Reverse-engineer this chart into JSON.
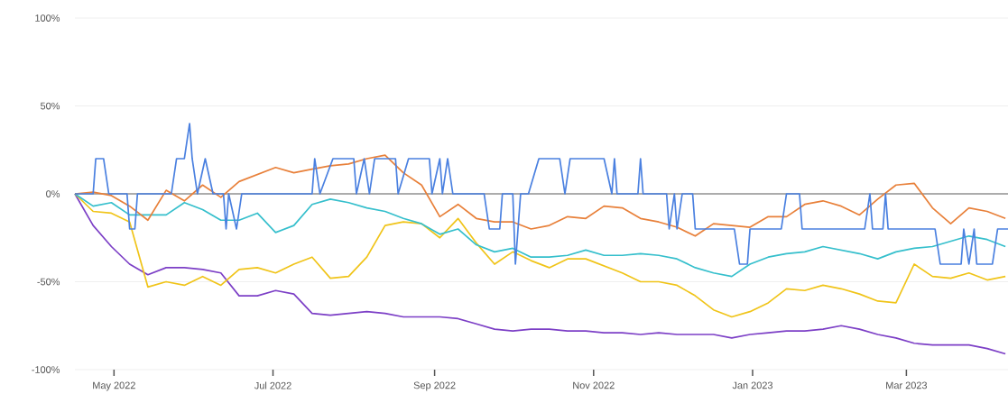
{
  "chart_data": {
    "type": "line",
    "x": [
      "2022-04-16",
      "2022-04-23",
      "2022-04-30",
      "2022-05-07",
      "2022-05-14",
      "2022-05-21",
      "2022-05-28",
      "2022-06-04",
      "2022-06-11",
      "2022-06-18",
      "2022-06-25",
      "2022-07-02",
      "2022-07-09",
      "2022-07-16",
      "2022-07-23",
      "2022-07-30",
      "2022-08-06",
      "2022-08-13",
      "2022-08-20",
      "2022-08-27",
      "2022-09-03",
      "2022-09-10",
      "2022-09-17",
      "2022-09-24",
      "2022-10-01",
      "2022-10-08",
      "2022-10-15",
      "2022-10-22",
      "2022-10-29",
      "2022-11-05",
      "2022-11-12",
      "2022-11-19",
      "2022-11-26",
      "2022-12-03",
      "2022-12-10",
      "2022-12-17",
      "2022-12-24",
      "2022-12-31",
      "2023-01-07",
      "2023-01-14",
      "2023-01-21",
      "2023-01-28",
      "2023-02-04",
      "2023-02-11",
      "2023-02-18",
      "2023-02-25",
      "2023-03-04",
      "2023-03-11",
      "2023-03-18",
      "2023-03-25",
      "2023-04-01",
      "2023-04-08"
    ],
    "series": [
      {
        "color": "#7c3fc6",
        "values": [
          0,
          -18,
          -30,
          -40,
          -46,
          -42,
          -42,
          -43,
          -45,
          -58,
          -58,
          -55,
          -57,
          -68,
          -69,
          -68,
          -67,
          -68,
          -70,
          -70,
          -70,
          -71,
          -74,
          -77,
          -78,
          -77,
          -77,
          -78,
          -78,
          -79,
          -79,
          -80,
          -79,
          -80,
          -80,
          -80,
          -82,
          -80,
          -79,
          -78,
          -78,
          -77,
          -75,
          -77,
          -80,
          -82,
          -85,
          -86,
          -86,
          -86,
          -88,
          -91
        ]
      },
      {
        "color": "#f0c419",
        "values": [
          0,
          -10,
          -11,
          -16,
          -53,
          -50,
          -52,
          -47,
          -52,
          -43,
          -42,
          -45,
          -40,
          -36,
          -48,
          -47,
          -36,
          -18,
          -16,
          -17,
          -25,
          -14,
          -28,
          -40,
          -33,
          -38,
          -42,
          -37,
          -37,
          -41,
          -45,
          -50,
          -50,
          -52,
          -58,
          -66,
          -70,
          -67,
          -62,
          -54,
          -55,
          -52,
          -54,
          -57,
          -61,
          -62,
          -40,
          -47,
          -48,
          -45,
          -49,
          -47
        ]
      },
      {
        "color": "#35bfcc",
        "values": [
          0,
          -7,
          -5,
          -12,
          -12,
          -12,
          -5,
          -9,
          -15,
          -15,
          -11,
          -22,
          -18,
          -6,
          -3,
          -5,
          -8,
          -10,
          -14,
          -17,
          -23,
          -20,
          -29,
          -33,
          -31,
          -36,
          -36,
          -35,
          -32,
          -35,
          -35,
          -34,
          -35,
          -37,
          -42,
          -45,
          -47,
          -40,
          -36,
          -34,
          -33,
          -30,
          -32,
          -34,
          -37,
          -33,
          -31,
          -30,
          -27,
          -24,
          -26,
          -30
        ]
      },
      {
        "color": "#e8803a",
        "values": [
          0,
          1,
          -1,
          -7,
          -15,
          2,
          -4,
          5,
          -2,
          7,
          11,
          15,
          12,
          14,
          16,
          17,
          20,
          22,
          12,
          5,
          -13,
          -6,
          -14,
          -16,
          -16,
          -20,
          -18,
          -13,
          -14,
          -7,
          -8,
          -14,
          -16,
          -19,
          -24,
          -17,
          -18,
          -19,
          -13,
          -13,
          -6,
          -4,
          -7,
          -12,
          -3,
          5,
          6,
          -8,
          -17,
          -8,
          -10,
          -14
        ]
      },
      {
        "color": "#4a80e0",
        "x": [
          "2022-04-16",
          "2022-04-23",
          "2022-04-24",
          "2022-04-27",
          "2022-04-29",
          "2022-05-06",
          "2022-05-07",
          "2022-05-09",
          "2022-05-10",
          "2022-05-23",
          "2022-05-25",
          "2022-05-28",
          "2022-05-30",
          "2022-05-31",
          "2022-06-02",
          "2022-06-05",
          "2022-06-08",
          "2022-06-12",
          "2022-06-13",
          "2022-06-14",
          "2022-06-17",
          "2022-06-19",
          "2022-07-16",
          "2022-07-17",
          "2022-07-19",
          "2022-07-24",
          "2022-08-01",
          "2022-08-02",
          "2022-08-05",
          "2022-08-07",
          "2022-08-09",
          "2022-08-17",
          "2022-08-18",
          "2022-08-22",
          "2022-08-30",
          "2022-08-31",
          "2022-09-03",
          "2022-09-04",
          "2022-09-06",
          "2022-09-08",
          "2022-09-20",
          "2022-09-22",
          "2022-09-26",
          "2022-09-27",
          "2022-10-01",
          "2022-10-02",
          "2022-10-04",
          "2022-10-07",
          "2022-10-11",
          "2022-10-19",
          "2022-10-21",
          "2022-10-23",
          "2022-11-05",
          "2022-11-08",
          "2022-11-09",
          "2022-11-10",
          "2022-11-18",
          "2022-11-19",
          "2022-11-20",
          "2022-11-29",
          "2022-11-30",
          "2022-12-02",
          "2022-12-03",
          "2022-12-05",
          "2022-12-09",
          "2022-12-10",
          "2022-12-25",
          "2022-12-27",
          "2022-12-30",
          "2022-12-31",
          "2023-01-12",
          "2023-01-14",
          "2023-01-19",
          "2023-01-20",
          "2023-02-13",
          "2023-02-15",
          "2023-02-16",
          "2023-02-20",
          "2023-02-21",
          "2023-02-22",
          "2023-03-12",
          "2023-03-14",
          "2023-03-22",
          "2023-03-23",
          "2023-03-25",
          "2023-03-27",
          "2023-03-28",
          "2023-04-03",
          "2023-04-05",
          "2023-04-09"
        ],
        "values": [
          0,
          0,
          20,
          20,
          0,
          0,
          -20,
          -20,
          0,
          0,
          20,
          20,
          40,
          20,
          0,
          20,
          0,
          0,
          -20,
          0,
          -20,
          0,
          0,
          20,
          0,
          20,
          20,
          0,
          20,
          0,
          20,
          20,
          0,
          20,
          20,
          0,
          20,
          0,
          20,
          0,
          0,
          -20,
          -20,
          0,
          0,
          -40,
          0,
          0,
          20,
          20,
          0,
          20,
          20,
          0,
          20,
          0,
          0,
          20,
          0,
          0,
          -20,
          0,
          -20,
          0,
          0,
          -20,
          -20,
          -40,
          -40,
          -20,
          -20,
          0,
          0,
          -20,
          -20,
          0,
          -20,
          -20,
          0,
          -20,
          -20,
          -40,
          -40,
          -20,
          -40,
          -20,
          -40,
          -40,
          -20,
          -20
        ]
      }
    ],
    "xlim": [
      "2022-04-16",
      "2023-04-09"
    ],
    "xticks": [
      {
        "value": "2022-05-01",
        "label": "May 2022"
      },
      {
        "value": "2022-07-01",
        "label": "Jul 2022"
      },
      {
        "value": "2022-09-01",
        "label": "Sep 2022"
      },
      {
        "value": "2022-11-01",
        "label": "Nov 2022"
      },
      {
        "value": "2023-01-01",
        "label": "Jan 2023"
      },
      {
        "value": "2023-03-01",
        "label": "Mar 2023"
      }
    ],
    "ylim": [
      -100,
      100
    ],
    "yticks": [
      {
        "value": -100,
        "label": "-100%"
      },
      {
        "value": -50,
        "label": "-50%"
      },
      {
        "value": 0,
        "label": "0%"
      },
      {
        "value": 50,
        "label": "50%"
      },
      {
        "value": 100,
        "label": "100%"
      }
    ],
    "grid": "y",
    "ref_lines": [
      {
        "axis": "y",
        "value": 0,
        "color": "#616161"
      }
    ]
  }
}
